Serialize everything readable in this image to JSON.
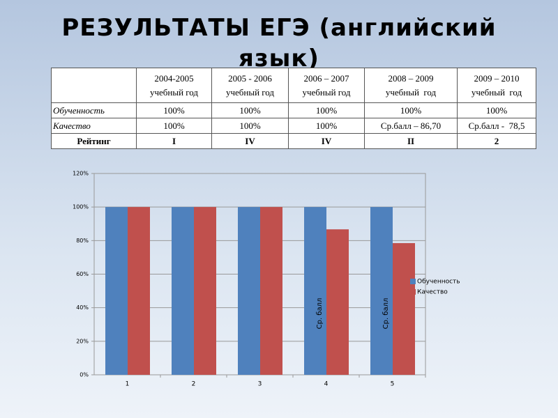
{
  "title": "РЕЗУЛЬТАТЫ ЕГЭ (английский язык)",
  "table": {
    "header": [
      {
        "period": "2004-2005",
        "label": "учебный год"
      },
      {
        "period": "2005 - 2006",
        "label": "учебный год"
      },
      {
        "period": "2006 – 2007",
        "label": "учебный год"
      },
      {
        "period": "2008 – 2009",
        "label": "учебный  год"
      },
      {
        "period": "2009 – 2010",
        "label": "учебный  год"
      }
    ],
    "rows": [
      [
        "Обученность",
        "100%",
        "100%",
        "100%",
        "100%",
        "100%"
      ],
      [
        "Качество",
        "100%",
        "100%",
        "100%",
        "Ср.балл – 86,70",
        "Ср.балл -  78,5"
      ],
      [
        "Рейтинг",
        "I",
        "IV",
        "IV",
        "II",
        "2"
      ]
    ]
  },
  "chart_data": {
    "type": "bar",
    "categories": [
      "1",
      "2",
      "3",
      "4",
      "5"
    ],
    "series": [
      {
        "name": "Обученность",
        "color": "#4f81bd",
        "values": [
          100,
          100,
          100,
          100,
          100
        ]
      },
      {
        "name": "Качество",
        "color": "#c0504d",
        "values": [
          100,
          100,
          100,
          86.7,
          78.5
        ]
      }
    ],
    "ylim": [
      0,
      120
    ],
    "yticks": [
      {
        "value": 0,
        "label": "0%"
      },
      {
        "value": 20,
        "label": "20%"
      },
      {
        "value": 40,
        "label": "40%"
      },
      {
        "value": 60,
        "label": "60%"
      },
      {
        "value": 80,
        "label": "80%"
      },
      {
        "value": 100,
        "label": "100%"
      },
      {
        "value": 120,
        "label": "120%"
      }
    ],
    "grid": true,
    "legend": "right",
    "annotations": [
      "Ср. балл",
      "Ср. балл"
    ]
  }
}
